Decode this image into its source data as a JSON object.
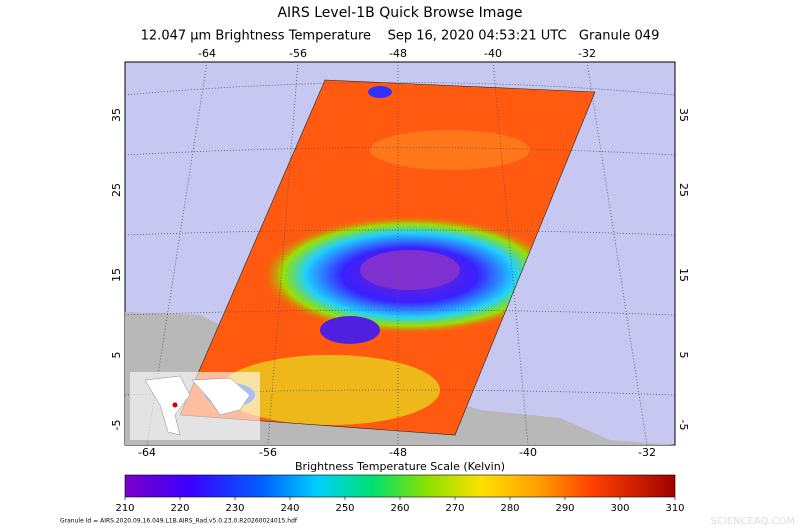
{
  "header": {
    "title": "AIRS Level-1B Quick Browse Image",
    "subtitle": "12.047 μm Brightness Temperature    Sep 16, 2020 04:53:21 UTC   Granule 049"
  },
  "map": {
    "top_lon_labels": [
      -64,
      -56,
      -48,
      -40,
      -32
    ],
    "bottom_lon_labels": [
      -64,
      -56,
      -48,
      -40,
      -32
    ],
    "left_lat_labels": [
      35,
      25,
      15,
      5,
      -5
    ],
    "right_lat_labels": [
      35,
      25,
      15,
      5,
      -5
    ]
  },
  "colorbar": {
    "title": "Brightness Temperature Scale (Kelvin)",
    "range": [
      210,
      310
    ],
    "ticks": [
      210,
      220,
      230,
      240,
      250,
      260,
      270,
      280,
      290,
      300,
      310
    ]
  },
  "footer": {
    "granule_id": "Granule Id = AIRS.2020.09.16.049.L1B.AIRS_Rad.v5.0.23.0.R20260024015.hdf"
  },
  "watermark": "SCIENCEAQ.COM"
}
